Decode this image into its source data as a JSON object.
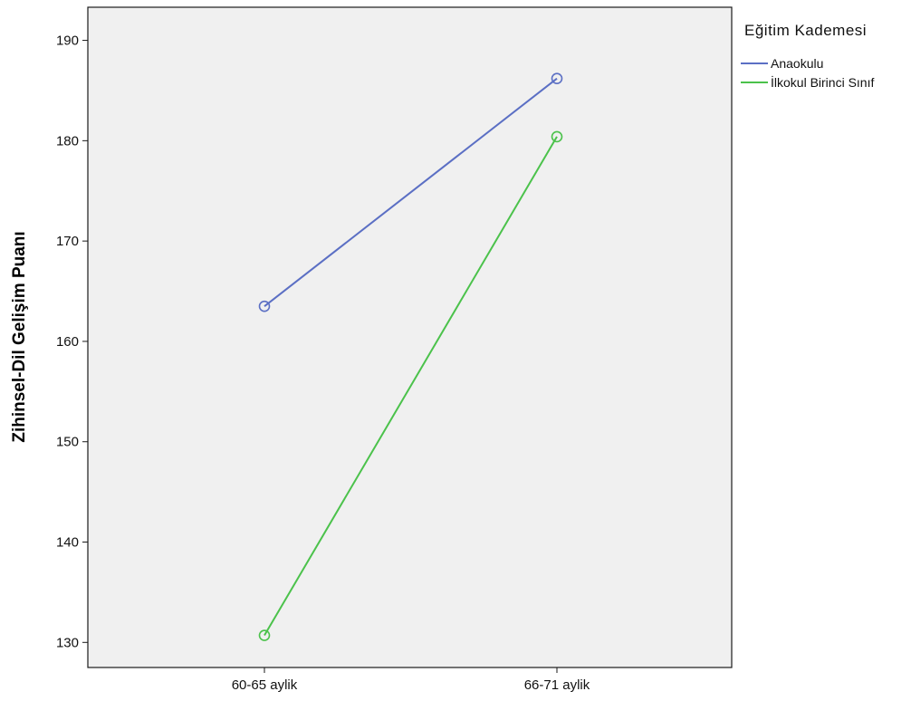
{
  "chart_data": {
    "type": "line",
    "categories": [
      "60-65 aylik",
      "66-71 aylik"
    ],
    "ylabel": "Zihinsel-Dil Gelişim Puanı",
    "xlabel": "",
    "ylim": [
      127.5,
      193.3
    ],
    "yticks": [
      130,
      140,
      150,
      160,
      170,
      180,
      190
    ],
    "grid": false,
    "legend": {
      "title": "Eğitim Kademesi",
      "placement": "right"
    },
    "series": [
      {
        "name": "Anaokulu",
        "color": "#5b6fc4",
        "marker": "circle",
        "values": [
          163.5,
          186.2
        ]
      },
      {
        "name": "İlkokul Birinci Sınıf",
        "color": "#4bc24b",
        "marker": "circle",
        "values": [
          130.7,
          180.4
        ]
      }
    ]
  }
}
